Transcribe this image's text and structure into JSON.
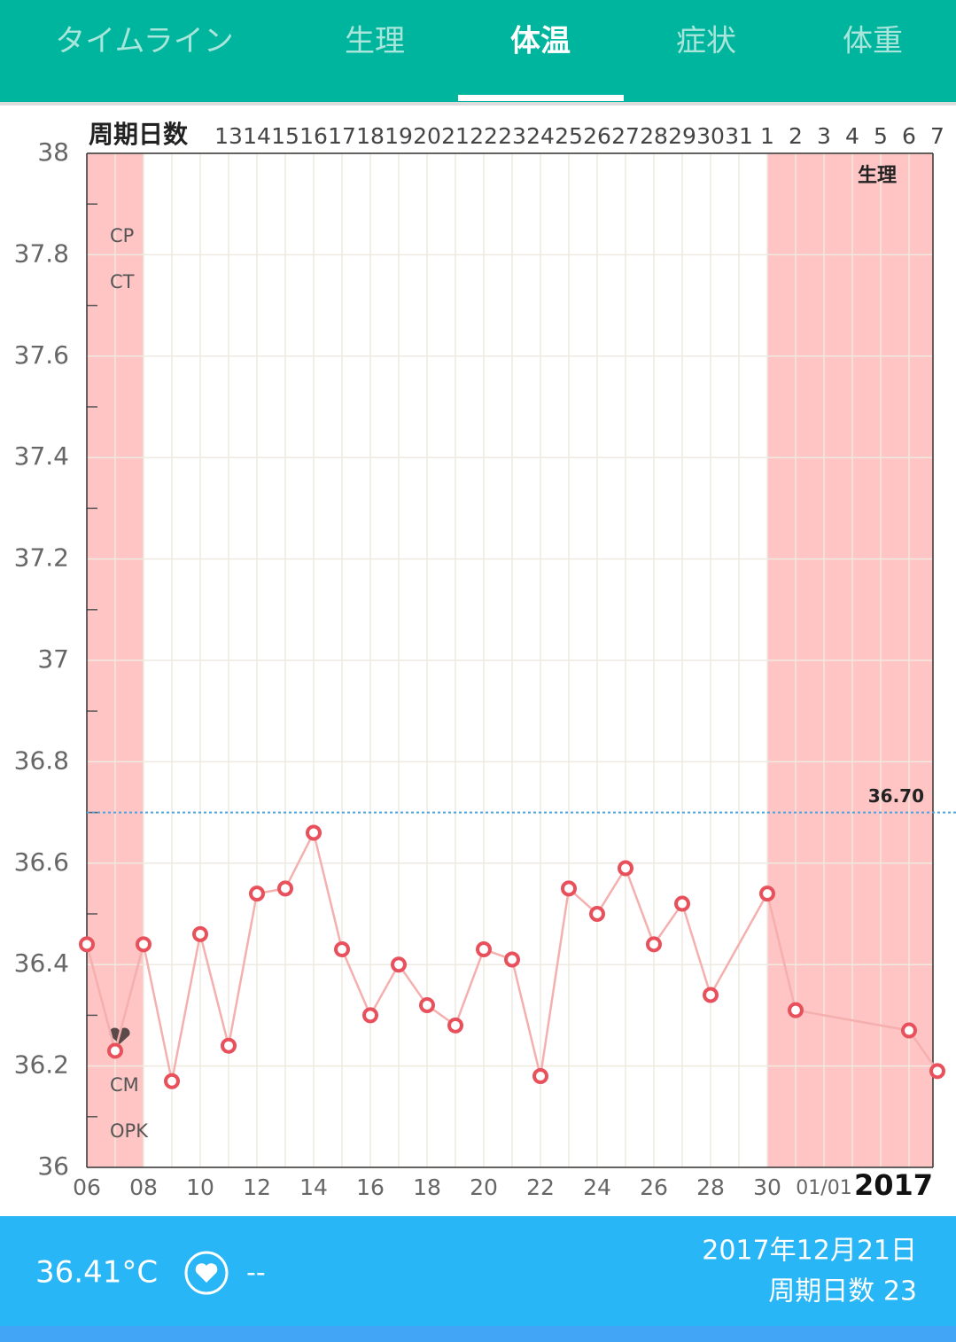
{
  "tabs": [
    "タイムライン",
    "生理",
    "体温",
    "症状",
    "体重"
  ],
  "selected_tab": 2,
  "chart_data": {
    "type": "line",
    "cycle_label": "周期日数",
    "categories": [
      "06",
      null,
      "08",
      null,
      "10",
      null,
      "12",
      null,
      "14",
      null,
      "16",
      null,
      "18",
      null,
      "20",
      null,
      "22",
      null,
      "24",
      null,
      "26",
      null,
      "28",
      null,
      "30",
      null,
      "01/01",
      null,
      null,
      null,
      null
    ],
    "cycle_days": [
      null,
      null,
      null,
      null,
      null,
      "13",
      "14",
      "15",
      "16",
      "17",
      "18",
      "19",
      "20",
      "21",
      "22",
      "23",
      "24",
      "25",
      "26",
      "27",
      "28",
      "29",
      "30",
      "31",
      "1",
      "2",
      "3",
      "4",
      "5",
      "6",
      "7"
    ],
    "series": [
      {
        "name": "体温",
        "color": "#e8505b",
        "values": [
          36.44,
          36.23,
          36.44,
          36.17,
          36.46,
          36.24,
          36.54,
          36.55,
          36.66,
          36.43,
          36.3,
          36.4,
          36.32,
          36.28,
          36.43,
          36.41,
          36.18,
          36.55,
          36.5,
          36.59,
          36.44,
          36.52,
          36.34,
          null,
          36.54,
          36.31,
          null,
          null,
          null,
          36.27,
          36.19
        ]
      }
    ],
    "ylim": [
      36,
      38
    ],
    "yticks": [
      36,
      36.2,
      36.4,
      36.6,
      36.8,
      37,
      37.2,
      37.4,
      37.6,
      37.8,
      38
    ],
    "minor_yticks": [
      36.1,
      36.3,
      36.5,
      36.7,
      36.9,
      37.1,
      37.3,
      37.5,
      37.7,
      37.9
    ],
    "grid": true,
    "reference_line": {
      "value": 36.7,
      "label": "36.70"
    },
    "period_bands": [
      [
        "06",
        "08"
      ],
      [
        "30"
      ]
    ],
    "period_label": "生理",
    "row_labels": [
      "CP",
      "CT",
      "CM",
      "OPK"
    ],
    "year_label": "2017"
  },
  "footer": {
    "temperature": "36.41°C",
    "heart_status": "--",
    "date": "2017年12月21日",
    "cycle_day": "周期日数 23"
  }
}
